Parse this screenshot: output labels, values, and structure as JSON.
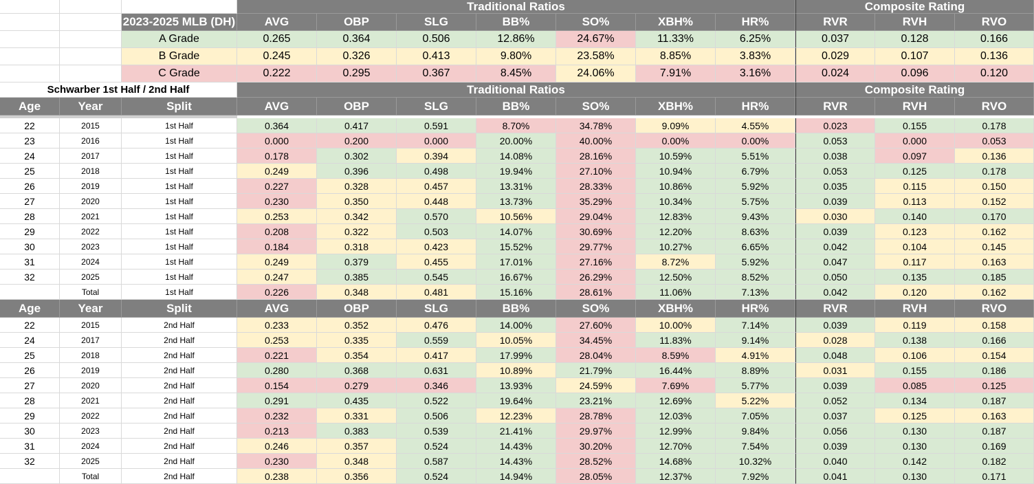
{
  "colors": {
    "header_bg": "#7f7f7f",
    "header_text": "#ffffff",
    "green": "#d9ead3",
    "yellow": "#fff2cc",
    "red": "#f4cccc"
  },
  "ref_table": {
    "group_trad": "Traditional Ratios",
    "group_comp": "Composite Rating",
    "title": "2023-2025 MLB (DH)",
    "stats": [
      "AVG",
      "OBP",
      "SLG",
      "BB%",
      "SO%",
      "XBH%",
      "HR%",
      "RVR",
      "RVH",
      "RVO"
    ],
    "grades": [
      {
        "label": "A Grade",
        "color": "green",
        "values": [
          "0.265",
          "0.364",
          "0.506",
          "12.86%",
          "24.67%",
          "11.33%",
          "6.25%",
          "0.037",
          "0.128",
          "0.166"
        ]
      },
      {
        "label": "B Grade",
        "color": "yellow",
        "values": [
          "0.245",
          "0.326",
          "0.413",
          "9.80%",
          "23.58%",
          "8.85%",
          "3.83%",
          "0.029",
          "0.107",
          "0.136"
        ]
      },
      {
        "label": "C Grade",
        "color": "red",
        "values": [
          "0.222",
          "0.295",
          "0.367",
          "8.45%",
          "24.06%",
          "7.91%",
          "3.16%",
          "0.024",
          "0.096",
          "0.120"
        ]
      }
    ],
    "grade_colors_override": {
      "A Grade": {
        "4": "red"
      },
      "C Grade": {
        "4": "yellow"
      }
    }
  },
  "split_title": "Schwarber 1st Half / 2nd Half",
  "split_headers": [
    "Age",
    "Year",
    "Split",
    "AVG",
    "OBP",
    "SLG",
    "BB%",
    "SO%",
    "XBH%",
    "HR%",
    "RVR",
    "RVH",
    "RVO"
  ],
  "first_half": [
    {
      "age": "22",
      "year": "2015",
      "split": "1st Half",
      "v": [
        "0.364",
        "0.417",
        "0.591",
        "8.70%",
        "34.78%",
        "9.09%",
        "4.55%",
        "0.023",
        "0.155",
        "0.178"
      ],
      "c": [
        "g",
        "g",
        "g",
        "r",
        "r",
        "y",
        "y",
        "r",
        "g",
        "g"
      ]
    },
    {
      "age": "23",
      "year": "2016",
      "split": "1st Half",
      "v": [
        "0.000",
        "0.200",
        "0.000",
        "20.00%",
        "40.00%",
        "0.00%",
        "0.00%",
        "0.053",
        "0.000",
        "0.053"
      ],
      "c": [
        "r",
        "r",
        "r",
        "g",
        "r",
        "r",
        "r",
        "g",
        "r",
        "r"
      ]
    },
    {
      "age": "24",
      "year": "2017",
      "split": "1st Half",
      "v": [
        "0.178",
        "0.302",
        "0.394",
        "14.08%",
        "28.16%",
        "10.59%",
        "5.51%",
        "0.038",
        "0.097",
        "0.136"
      ],
      "c": [
        "r",
        "g",
        "y",
        "g",
        "r",
        "g",
        "g",
        "g",
        "r",
        "y"
      ]
    },
    {
      "age": "25",
      "year": "2018",
      "split": "1st Half",
      "v": [
        "0.249",
        "0.396",
        "0.498",
        "19.94%",
        "27.10%",
        "10.94%",
        "6.79%",
        "0.053",
        "0.125",
        "0.178"
      ],
      "c": [
        "y",
        "g",
        "g",
        "g",
        "r",
        "g",
        "g",
        "g",
        "g",
        "g"
      ]
    },
    {
      "age": "26",
      "year": "2019",
      "split": "1st Half",
      "v": [
        "0.227",
        "0.328",
        "0.457",
        "13.31%",
        "28.33%",
        "10.86%",
        "5.92%",
        "0.035",
        "0.115",
        "0.150"
      ],
      "c": [
        "r",
        "y",
        "y",
        "g",
        "r",
        "g",
        "g",
        "g",
        "y",
        "y"
      ]
    },
    {
      "age": "27",
      "year": "2020",
      "split": "1st Half",
      "v": [
        "0.230",
        "0.350",
        "0.448",
        "13.73%",
        "35.29%",
        "10.34%",
        "5.75%",
        "0.039",
        "0.113",
        "0.152"
      ],
      "c": [
        "r",
        "y",
        "y",
        "g",
        "r",
        "g",
        "g",
        "g",
        "y",
        "y"
      ]
    },
    {
      "age": "28",
      "year": "2021",
      "split": "1st Half",
      "v": [
        "0.253",
        "0.342",
        "0.570",
        "10.56%",
        "29.04%",
        "12.83%",
        "9.43%",
        "0.030",
        "0.140",
        "0.170"
      ],
      "c": [
        "y",
        "y",
        "g",
        "y",
        "r",
        "g",
        "g",
        "y",
        "g",
        "g"
      ]
    },
    {
      "age": "29",
      "year": "2022",
      "split": "1st Half",
      "v": [
        "0.208",
        "0.322",
        "0.503",
        "14.07%",
        "30.69%",
        "12.20%",
        "8.63%",
        "0.039",
        "0.123",
        "0.162"
      ],
      "c": [
        "r",
        "y",
        "g",
        "g",
        "r",
        "g",
        "g",
        "g",
        "y",
        "y"
      ]
    },
    {
      "age": "30",
      "year": "2023",
      "split": "1st Half",
      "v": [
        "0.184",
        "0.318",
        "0.423",
        "15.52%",
        "29.77%",
        "10.27%",
        "6.65%",
        "0.042",
        "0.104",
        "0.145"
      ],
      "c": [
        "r",
        "y",
        "y",
        "g",
        "r",
        "g",
        "g",
        "g",
        "y",
        "y"
      ]
    },
    {
      "age": "31",
      "year": "2024",
      "split": "1st Half",
      "v": [
        "0.249",
        "0.379",
        "0.455",
        "17.01%",
        "27.16%",
        "8.72%",
        "5.92%",
        "0.047",
        "0.117",
        "0.163"
      ],
      "c": [
        "y",
        "g",
        "y",
        "g",
        "r",
        "y",
        "g",
        "g",
        "y",
        "y"
      ]
    },
    {
      "age": "32",
      "year": "2025",
      "split": "1st Half",
      "v": [
        "0.247",
        "0.385",
        "0.545",
        "16.67%",
        "26.29%",
        "12.50%",
        "8.52%",
        "0.050",
        "0.135",
        "0.185"
      ],
      "c": [
        "y",
        "g",
        "g",
        "g",
        "r",
        "g",
        "g",
        "g",
        "g",
        "g"
      ]
    },
    {
      "age": "",
      "year": "Total",
      "split": "1st Half",
      "v": [
        "0.226",
        "0.348",
        "0.481",
        "15.16%",
        "28.61%",
        "11.06%",
        "7.13%",
        "0.042",
        "0.120",
        "0.162"
      ],
      "c": [
        "r",
        "y",
        "y",
        "g",
        "r",
        "g",
        "g",
        "g",
        "y",
        "y"
      ]
    }
  ],
  "second_half": [
    {
      "age": "22",
      "year": "2015",
      "split": "2nd Half",
      "v": [
        "0.233",
        "0.352",
        "0.476",
        "14.00%",
        "27.60%",
        "10.00%",
        "7.14%",
        "0.039",
        "0.119",
        "0.158"
      ],
      "c": [
        "y",
        "y",
        "y",
        "g",
        "r",
        "y",
        "g",
        "g",
        "y",
        "y"
      ]
    },
    {
      "age": "24",
      "year": "2017",
      "split": "2nd Half",
      "v": [
        "0.253",
        "0.335",
        "0.559",
        "10.05%",
        "34.45%",
        "11.83%",
        "9.14%",
        "0.028",
        "0.138",
        "0.166"
      ],
      "c": [
        "y",
        "y",
        "g",
        "y",
        "r",
        "g",
        "g",
        "y",
        "g",
        "g"
      ]
    },
    {
      "age": "25",
      "year": "2018",
      "split": "2nd Half",
      "v": [
        "0.221",
        "0.354",
        "0.417",
        "17.99%",
        "28.04%",
        "8.59%",
        "4.91%",
        "0.048",
        "0.106",
        "0.154"
      ],
      "c": [
        "r",
        "y",
        "y",
        "g",
        "r",
        "r",
        "y",
        "g",
        "y",
        "y"
      ]
    },
    {
      "age": "26",
      "year": "2019",
      "split": "2nd Half",
      "v": [
        "0.280",
        "0.368",
        "0.631",
        "10.89%",
        "21.79%",
        "16.44%",
        "8.89%",
        "0.031",
        "0.155",
        "0.186"
      ],
      "c": [
        "g",
        "g",
        "g",
        "y",
        "g",
        "g",
        "g",
        "y",
        "g",
        "g"
      ]
    },
    {
      "age": "27",
      "year": "2020",
      "split": "2nd Half",
      "v": [
        "0.154",
        "0.279",
        "0.346",
        "13.93%",
        "24.59%",
        "7.69%",
        "5.77%",
        "0.039",
        "0.085",
        "0.125"
      ],
      "c": [
        "r",
        "r",
        "r",
        "g",
        "y",
        "r",
        "g",
        "g",
        "r",
        "r"
      ]
    },
    {
      "age": "28",
      "year": "2021",
      "split": "2nd Half",
      "v": [
        "0.291",
        "0.435",
        "0.522",
        "19.64%",
        "23.21%",
        "12.69%",
        "5.22%",
        "0.052",
        "0.134",
        "0.187"
      ],
      "c": [
        "g",
        "g",
        "g",
        "g",
        "g",
        "g",
        "y",
        "g",
        "g",
        "g"
      ]
    },
    {
      "age": "29",
      "year": "2022",
      "split": "2nd Half",
      "v": [
        "0.232",
        "0.331",
        "0.506",
        "12.23%",
        "28.78%",
        "12.03%",
        "7.05%",
        "0.037",
        "0.125",
        "0.163"
      ],
      "c": [
        "r",
        "y",
        "g",
        "y",
        "r",
        "g",
        "g",
        "g",
        "y",
        "y"
      ]
    },
    {
      "age": "30",
      "year": "2023",
      "split": "2nd Half",
      "v": [
        "0.213",
        "0.383",
        "0.539",
        "21.41%",
        "29.97%",
        "12.99%",
        "9.84%",
        "0.056",
        "0.130",
        "0.187"
      ],
      "c": [
        "r",
        "g",
        "g",
        "g",
        "r",
        "g",
        "g",
        "g",
        "g",
        "g"
      ]
    },
    {
      "age": "31",
      "year": "2024",
      "split": "2nd Half",
      "v": [
        "0.246",
        "0.357",
        "0.524",
        "14.43%",
        "30.20%",
        "12.70%",
        "7.54%",
        "0.039",
        "0.130",
        "0.169"
      ],
      "c": [
        "y",
        "y",
        "g",
        "g",
        "r",
        "g",
        "g",
        "g",
        "g",
        "g"
      ]
    },
    {
      "age": "32",
      "year": "2025",
      "split": "2nd Half",
      "v": [
        "0.230",
        "0.348",
        "0.587",
        "14.43%",
        "28.52%",
        "14.68%",
        "10.32%",
        "0.040",
        "0.142",
        "0.182"
      ],
      "c": [
        "r",
        "y",
        "g",
        "g",
        "r",
        "g",
        "g",
        "g",
        "g",
        "g"
      ]
    },
    {
      "age": "",
      "year": "Total",
      "split": "2nd Half",
      "v": [
        "0.238",
        "0.356",
        "0.524",
        "14.94%",
        "28.05%",
        "12.37%",
        "7.92%",
        "0.041",
        "0.130",
        "0.171"
      ],
      "c": [
        "y",
        "y",
        "g",
        "g",
        "r",
        "g",
        "g",
        "g",
        "g",
        "g"
      ]
    }
  ]
}
